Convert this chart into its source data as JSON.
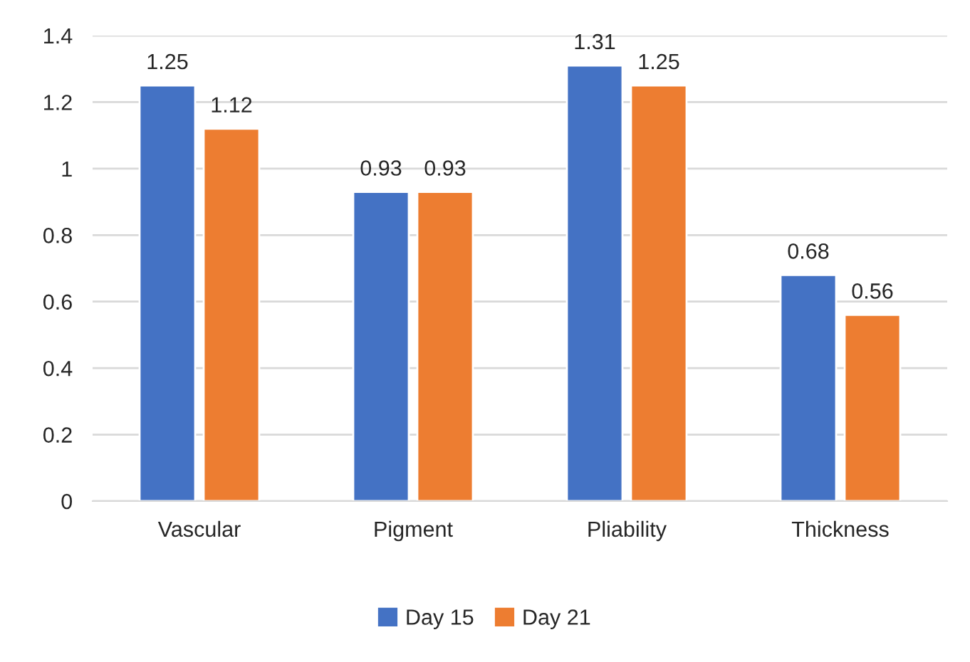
{
  "chart_data": {
    "type": "bar",
    "categories": [
      "Vascular",
      "Pigment",
      "Pliability",
      "Thickness"
    ],
    "series": [
      {
        "name": "Day 15",
        "color": "#4472c4",
        "values": [
          1.25,
          0.93,
          1.31,
          0.68
        ]
      },
      {
        "name": "Day 21",
        "color": "#ed7d31",
        "values": [
          1.12,
          0.93,
          1.25,
          0.56
        ]
      }
    ],
    "ylim": [
      0,
      1.4
    ],
    "yticks": [
      0,
      0.2,
      0.4,
      0.6,
      0.8,
      1,
      1.2,
      1.4
    ],
    "grid": "y",
    "legend": "bottom",
    "data_labels": true
  }
}
